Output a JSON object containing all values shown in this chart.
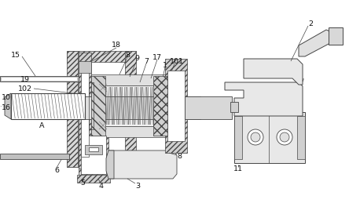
{
  "bg_color": "#ffffff",
  "lc": "#444444",
  "figsize": [
    4.44,
    2.59
  ],
  "dpi": 100
}
